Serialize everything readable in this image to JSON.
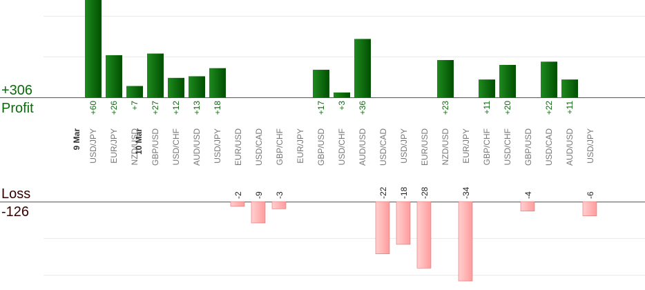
{
  "colors": {
    "profit_bar": "#0a6a0a",
    "profit_text": "#0a6a0a",
    "loss_bar": "#ffb3b3",
    "loss_bar_edge": "#e07070",
    "loss_text": "#330000",
    "grid": "#e8e8e8",
    "axis": "#555555"
  },
  "summary": {
    "profit_total": "+306",
    "profit_label": "Profit",
    "loss_label": "Loss",
    "loss_total": "-126"
  },
  "chart_data": {
    "type": "bar",
    "ylim_profit": [
      0,
      50
    ],
    "ylim_loss": [
      0,
      40
    ],
    "grid": true,
    "columns": [
      {
        "date": "9 Mar",
        "pair": "USD/JPY",
        "profit": 60,
        "loss": null
      },
      {
        "date": "",
        "pair": "EUR/JPY",
        "profit": 26,
        "loss": null
      },
      {
        "date": "",
        "pair": "NZD/USD",
        "profit": 7,
        "loss": null
      },
      {
        "date": "10 Mar",
        "pair": "GBP/USD",
        "profit": 27,
        "loss": null
      },
      {
        "date": "",
        "pair": "USD/CHF",
        "profit": 12,
        "loss": null
      },
      {
        "date": "",
        "pair": "AUD/USD",
        "profit": 13,
        "loss": null
      },
      {
        "date": "",
        "pair": "USD/JPY",
        "profit": 18,
        "loss": null
      },
      {
        "date": "",
        "pair": "EUR/USD",
        "profit": null,
        "loss": -2
      },
      {
        "date": "",
        "pair": "USD/CAD",
        "profit": null,
        "loss": -9
      },
      {
        "date": "",
        "pair": "GBP/CHF",
        "profit": null,
        "loss": -3
      },
      {
        "date": "",
        "pair": "EUR/JPY",
        "profit": null,
        "loss": null
      },
      {
        "date": "",
        "pair": "GBP/USD",
        "profit": 17,
        "loss": null
      },
      {
        "date": "",
        "pair": "USD/CHF",
        "profit": 3,
        "loss": null
      },
      {
        "date": "",
        "pair": "AUD/USD",
        "profit": 36,
        "loss": null
      },
      {
        "date": "",
        "pair": "USD/CAD",
        "profit": null,
        "loss": -22
      },
      {
        "date": "",
        "pair": "USD/JPY",
        "profit": null,
        "loss": -18
      },
      {
        "date": "",
        "pair": "EUR/USD",
        "profit": null,
        "loss": -28
      },
      {
        "date": "",
        "pair": "NZD/USD",
        "profit": 23,
        "loss": null
      },
      {
        "date": "",
        "pair": "EUR/JPY",
        "profit": null,
        "loss": -34
      },
      {
        "date": "",
        "pair": "GBP/CHF",
        "profit": 11,
        "loss": null
      },
      {
        "date": "",
        "pair": "USD/CHF",
        "profit": 20,
        "loss": null
      },
      {
        "date": "",
        "pair": "GBP/USD",
        "profit": null,
        "loss": -4
      },
      {
        "date": "",
        "pair": "USD/CAD",
        "profit": 22,
        "loss": null
      },
      {
        "date": "",
        "pair": "AUD/USD",
        "profit": 11,
        "loss": null
      },
      {
        "date": "",
        "pair": "USD/JPY",
        "profit": null,
        "loss": -6
      }
    ]
  }
}
